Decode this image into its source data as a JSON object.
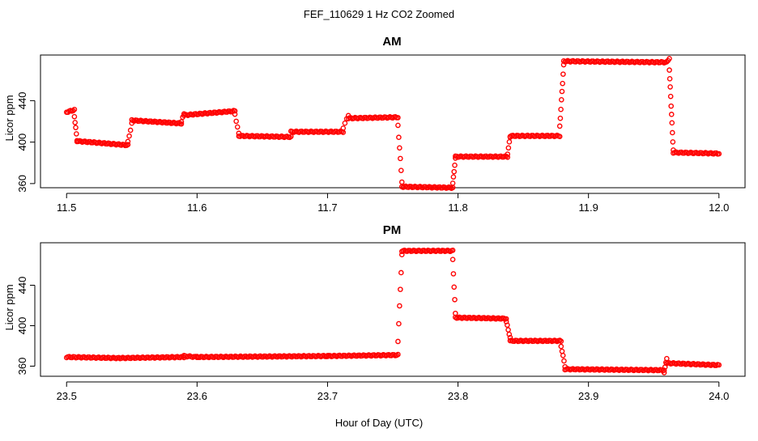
{
  "figure": {
    "suptitle": "FEF_110629  1 Hz CO2 Zoomed",
    "xlabel": "Hour of Day (UTC)"
  },
  "colors": {
    "points": "#ff0000",
    "axes": "#000000"
  },
  "chart_data": [
    {
      "type": "scatter",
      "title": "AM",
      "xlabel": "",
      "ylabel": "Licor ppm",
      "xlim": [
        11.48,
        12.02
      ],
      "ylim": [
        356,
        484
      ],
      "xticks": [
        "11.5",
        "11.6",
        "11.7",
        "11.8",
        "11.9",
        "12.0"
      ],
      "yticks": [
        "360",
        "400",
        "440"
      ],
      "grid": false,
      "marker": "open-circle",
      "series": [
        {
          "name": "",
          "segments": [
            {
              "x0": 11.5,
              "x1": 11.506,
              "y0": 429,
              "y1": 431,
              "n": 7
            },
            {
              "x0": 11.506,
              "x1": 11.508,
              "y0": 425,
              "y1": 402,
              "n": 5
            },
            {
              "x0": 11.508,
              "x1": 11.547,
              "y0": 401,
              "y1": 397,
              "n": 40
            },
            {
              "x0": 11.547,
              "x1": 11.55,
              "y0": 400,
              "y1": 418,
              "n": 4
            },
            {
              "x0": 11.55,
              "x1": 11.588,
              "y0": 421,
              "y1": 418,
              "n": 40
            },
            {
              "x0": 11.588,
              "x1": 11.59,
              "y0": 420,
              "y1": 427,
              "n": 3
            },
            {
              "x0": 11.59,
              "x1": 11.629,
              "y0": 426,
              "y1": 430,
              "n": 40
            },
            {
              "x0": 11.629,
              "x1": 11.632,
              "y0": 427,
              "y1": 408,
              "n": 4
            },
            {
              "x0": 11.632,
              "x1": 11.672,
              "y0": 406,
              "y1": 405,
              "n": 40
            },
            {
              "x0": 11.672,
              "x1": 11.712,
              "y0": 410,
              "y1": 410,
              "n": 40
            },
            {
              "x0": 11.712,
              "x1": 11.716,
              "y0": 414,
              "y1": 426,
              "n": 4
            },
            {
              "x0": 11.716,
              "x1": 11.754,
              "y0": 423,
              "y1": 424,
              "n": 38
            },
            {
              "x0": 11.754,
              "x1": 11.757,
              "y0": 416,
              "y1": 362,
              "n": 6
            },
            {
              "x0": 11.757,
              "x1": 11.796,
              "y0": 357,
              "y1": 356,
              "n": 40
            },
            {
              "x0": 11.796,
              "x1": 11.798,
              "y0": 360,
              "y1": 384,
              "n": 5
            },
            {
              "x0": 11.798,
              "x1": 11.838,
              "y0": 386,
              "y1": 386,
              "n": 40
            },
            {
              "x0": 11.838,
              "x1": 11.84,
              "y0": 389,
              "y1": 405,
              "n": 4
            },
            {
              "x0": 11.84,
              "x1": 11.878,
              "y0": 406,
              "y1": 406,
              "n": 38
            },
            {
              "x0": 11.878,
              "x1": 11.881,
              "y0": 415,
              "y1": 474,
              "n": 8
            },
            {
              "x0": 11.881,
              "x1": 11.96,
              "y0": 478,
              "y1": 477,
              "n": 78
            },
            {
              "x0": 11.96,
              "x1": 11.962,
              "y0": 478,
              "y1": 480,
              "n": 3
            },
            {
              "x0": 11.962,
              "x1": 11.965,
              "y0": 470,
              "y1": 392,
              "n": 10
            },
            {
              "x0": 11.965,
              "x1": 12.0,
              "y0": 390,
              "y1": 389,
              "n": 35
            }
          ]
        }
      ]
    },
    {
      "type": "scatter",
      "title": "PM",
      "xlabel": "",
      "ylabel": "Licor ppm",
      "xlim": [
        23.48,
        24.02
      ],
      "ylim": [
        350,
        482
      ],
      "xticks": [
        "23.5",
        "23.6",
        "23.7",
        "23.8",
        "23.9",
        "24.0"
      ],
      "yticks": [
        "360",
        "400",
        "440"
      ],
      "grid": false,
      "marker": "open-circle",
      "series": [
        {
          "name": "",
          "segments": [
            {
              "x0": 23.5,
              "x1": 23.54,
              "y0": 369,
              "y1": 368,
              "n": 40
            },
            {
              "x0": 23.54,
              "x1": 23.59,
              "y0": 368,
              "y1": 369,
              "n": 50
            },
            {
              "x0": 23.59,
              "x1": 23.6,
              "y0": 370,
              "y1": 369,
              "n": 10
            },
            {
              "x0": 23.6,
              "x1": 23.7,
              "y0": 369,
              "y1": 370,
              "n": 100
            },
            {
              "x0": 23.7,
              "x1": 23.754,
              "y0": 370,
              "y1": 371,
              "n": 54
            },
            {
              "x0": 23.754,
              "x1": 23.757,
              "y0": 385,
              "y1": 470,
              "n": 6
            },
            {
              "x0": 23.757,
              "x1": 23.796,
              "y0": 474,
              "y1": 474,
              "n": 40
            },
            {
              "x0": 23.796,
              "x1": 23.798,
              "y0": 465,
              "y1": 412,
              "n": 5
            },
            {
              "x0": 23.798,
              "x1": 23.837,
              "y0": 408,
              "y1": 407,
              "n": 40
            },
            {
              "x0": 23.837,
              "x1": 23.84,
              "y0": 404,
              "y1": 388,
              "n": 5
            },
            {
              "x0": 23.84,
              "x1": 23.879,
              "y0": 385,
              "y1": 385,
              "n": 40
            },
            {
              "x0": 23.879,
              "x1": 23.882,
              "y0": 380,
              "y1": 360,
              "n": 5
            },
            {
              "x0": 23.882,
              "x1": 23.958,
              "y0": 357,
              "y1": 356,
              "n": 76
            },
            {
              "x0": 23.958,
              "x1": 23.96,
              "y0": 354,
              "y1": 368,
              "n": 4
            },
            {
              "x0": 23.96,
              "x1": 24.0,
              "y0": 363,
              "y1": 361,
              "n": 40
            }
          ]
        }
      ]
    }
  ]
}
